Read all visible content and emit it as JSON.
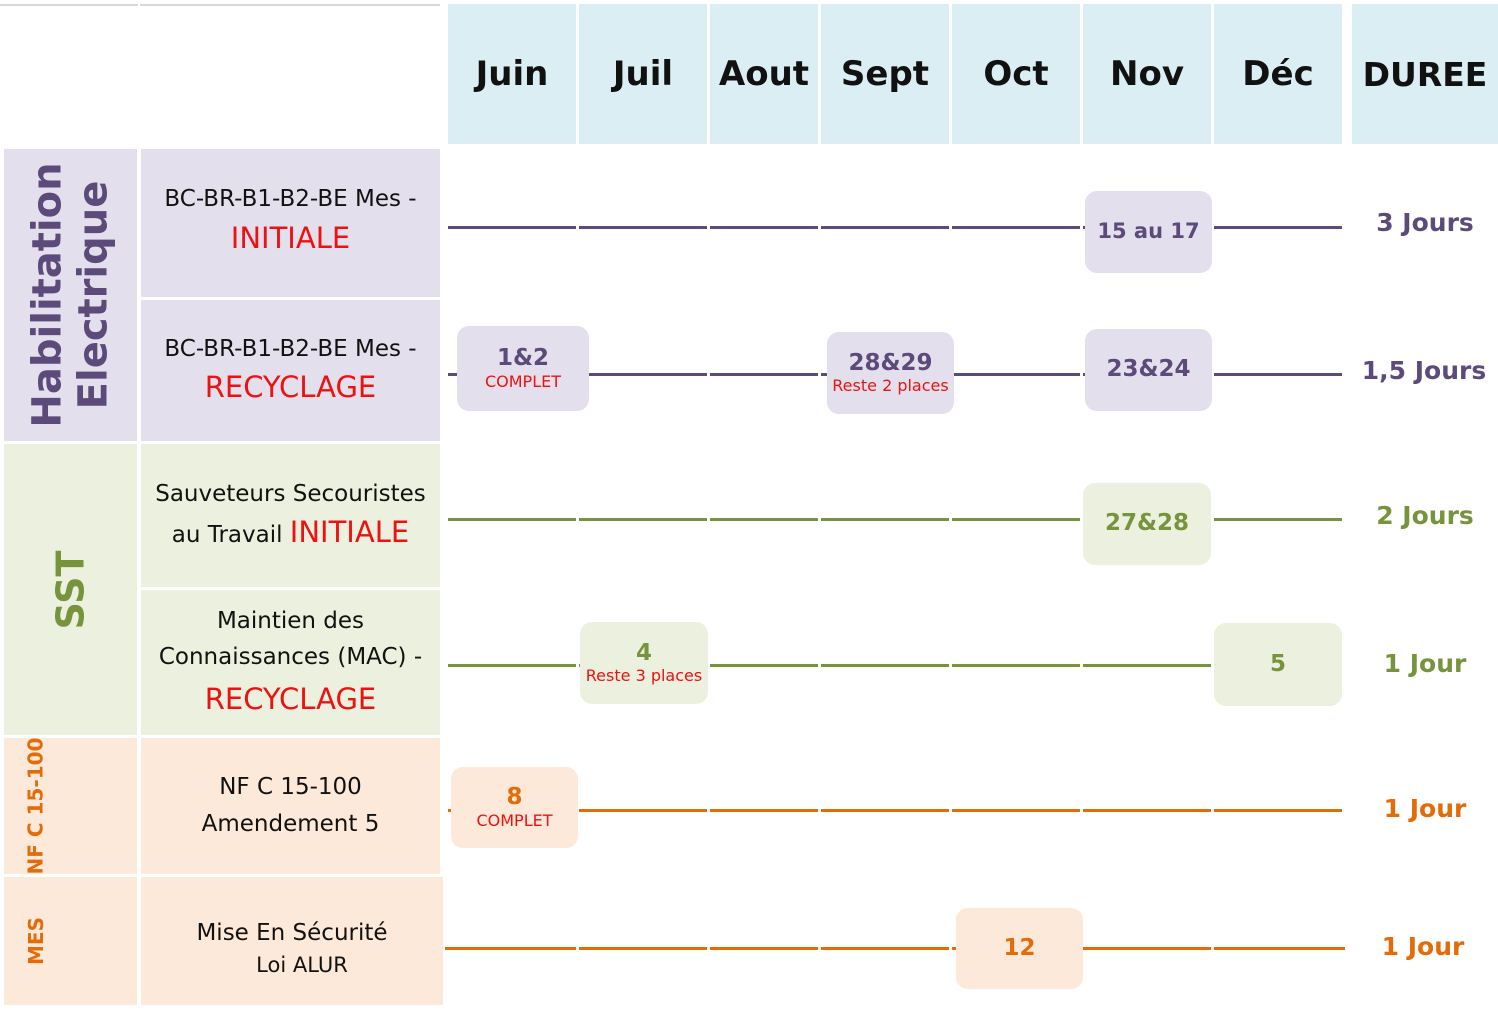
{
  "months": [
    "Juin",
    "Juil",
    "Aout",
    "Sept",
    "Oct",
    "Nov",
    "Déc"
  ],
  "duration_header": "DUREE",
  "colors": {
    "header_bg": "#dbeef3",
    "purple_bg": "#e4dfec",
    "purple_line": "#5c4a7a",
    "purple_text": "#5c4a7a",
    "green_bg": "#ebf1de",
    "green_line": "#77933c",
    "green_text": "#77933c",
    "orange_bg": "#fde9d9",
    "orange_line": "#e36c09",
    "orange_text": "#e36c09",
    "red_text": "#ee1111"
  },
  "categories": [
    {
      "lines": [
        "Habilitation",
        "Electrique"
      ]
    },
    {
      "lines": [
        "SST"
      ]
    },
    {
      "lines": [
        "NF C 15-100"
      ]
    },
    {
      "lines": [
        "MES"
      ]
    }
  ],
  "courses": [
    {
      "label_line1": "BC-BR-B1-B2-BE Mes -",
      "label_highlight": "INITIALE",
      "duration": "3 Jours",
      "sessions": [
        {
          "month": "Nov",
          "date": "15 au 17",
          "note": ""
        }
      ]
    },
    {
      "label_line1": "BC-BR-B1-B2-BE Mes -",
      "label_highlight": "RECYCLAGE",
      "duration": "1,5 Jours",
      "sessions": [
        {
          "month": "Juin",
          "date": "1&2",
          "note": "COMPLET"
        },
        {
          "month": "Sept",
          "date": "28&29",
          "note": "Reste 2 places"
        },
        {
          "month": "Nov",
          "date": "23&24",
          "note": ""
        }
      ]
    },
    {
      "label_line1": "Sauveteurs Secouristes",
      "label_line2": "au Travail",
      "label_highlight": "INITIALE",
      "duration": "2 Jours",
      "sessions": [
        {
          "month": "Nov",
          "date": "27&28",
          "note": ""
        }
      ]
    },
    {
      "label_line1": "Maintien des",
      "label_line2": "Connaissances (MAC) -",
      "label_highlight": "RECYCLAGE",
      "duration": "1 Jour",
      "sessions": [
        {
          "month": "Juil",
          "date": "4",
          "note": "Reste 3 places"
        },
        {
          "month": "Déc",
          "date": "5",
          "note": ""
        }
      ]
    },
    {
      "label_line1": "NF C 15-100",
      "label_line2": "Amendement 5",
      "duration": "1 Jour",
      "sessions": [
        {
          "month": "Juin",
          "date": "8",
          "note": "COMPLET"
        }
      ]
    },
    {
      "label_line1": "Mise En Sécurité",
      "label_line2": "Loi ALUR",
      "duration": "1 Jour",
      "sessions": [
        {
          "month": "Oct",
          "date": "12",
          "note": ""
        }
      ]
    }
  ]
}
